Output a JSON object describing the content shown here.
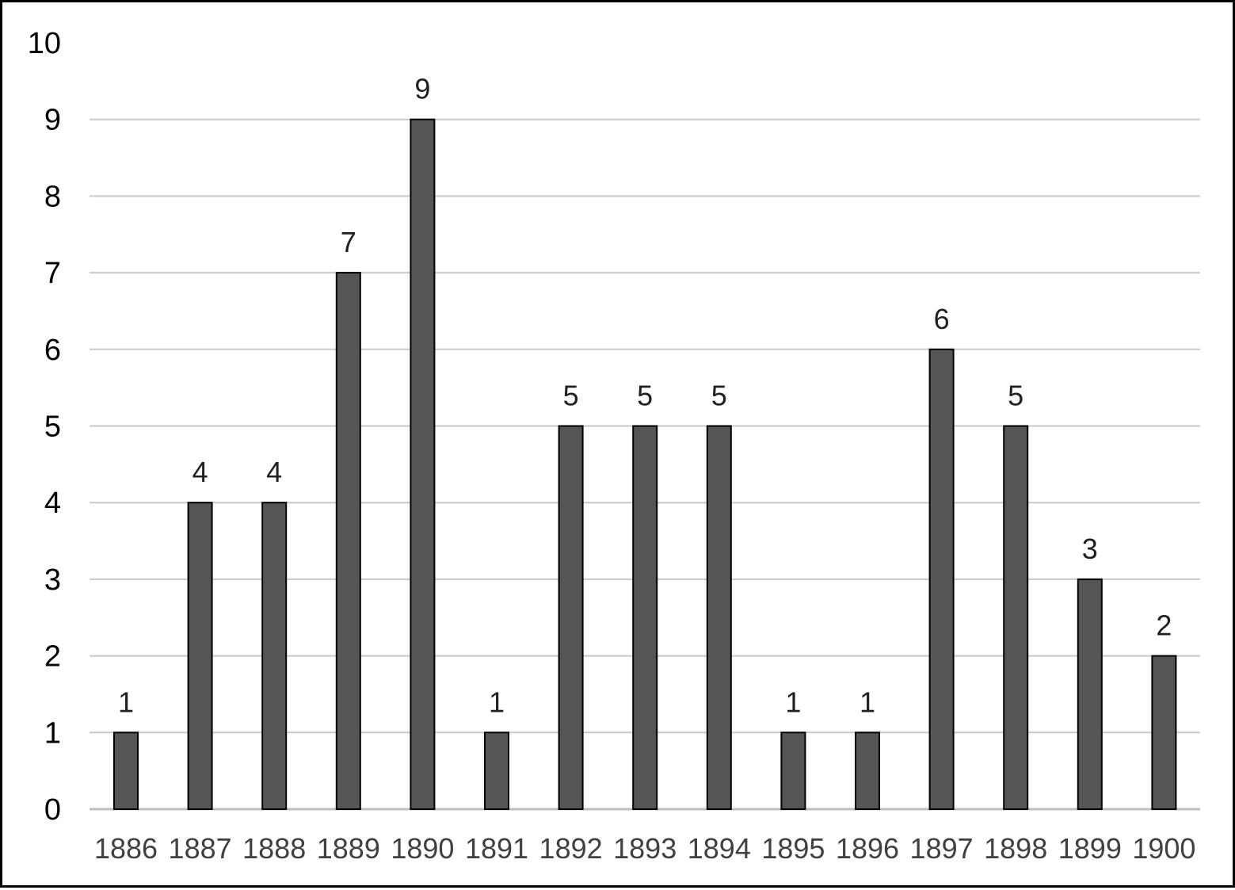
{
  "chart_data": {
    "type": "bar",
    "title": "",
    "xlabel": "",
    "ylabel": "",
    "categories": [
      "1886",
      "1887",
      "1888",
      "1889",
      "1890",
      "1891",
      "1892",
      "1893",
      "1894",
      "1895",
      "1896",
      "1897",
      "1898",
      "1899",
      "1900"
    ],
    "values": [
      1,
      4,
      4,
      7,
      9,
      1,
      5,
      5,
      5,
      1,
      1,
      6,
      5,
      3,
      2
    ],
    "ylim": [
      0,
      10
    ],
    "yticks": [
      "0",
      "1",
      "2",
      "3",
      "4",
      "5",
      "6",
      "7",
      "8",
      "9",
      "10"
    ],
    "grid": "horizontal",
    "legend": "none",
    "data_labels": true,
    "colors": {
      "bar_fill": "#555555",
      "bar_stroke": "#000000",
      "grid": "#c8c8c8",
      "axis": "#bfbfbf"
    }
  }
}
